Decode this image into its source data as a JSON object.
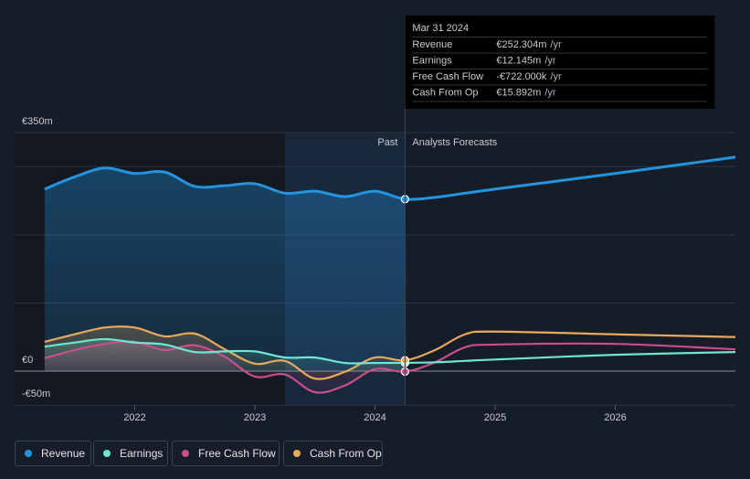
{
  "chart_data": {
    "type": "line",
    "x": [
      2021.25,
      2021.5,
      2021.75,
      2022.0,
      2022.25,
      2022.5,
      2022.75,
      2023.0,
      2023.25,
      2023.5,
      2023.75,
      2024.0,
      2024.25,
      2024.5,
      2024.75,
      2025.0,
      2026.0,
      2027.0
    ],
    "series": [
      {
        "name": "Revenue",
        "color": "#2394df",
        "values": [
          267,
          285,
          298,
          290,
          292,
          271,
          272,
          275,
          261,
          264,
          256,
          264,
          252.304,
          255,
          261,
          267,
          290,
          314
        ]
      },
      {
        "name": "Earnings",
        "color": "#6ee7d2",
        "values": [
          36,
          42,
          47,
          42,
          39,
          28,
          29,
          29,
          20,
          20,
          12,
          12,
          12.145,
          13,
          15,
          17,
          24,
          28
        ]
      },
      {
        "name": "Free Cash Flow",
        "color": "#c84f8a",
        "values": [
          19,
          31,
          40,
          43,
          31,
          38,
          21,
          -8,
          -5,
          -31,
          -21,
          3,
          -0.722,
          13,
          35,
          39,
          40,
          32
        ]
      },
      {
        "name": "Cash From Op",
        "color": "#e8a95a",
        "values": [
          43,
          54,
          64,
          64,
          51,
          55,
          32,
          11,
          15,
          -11,
          -1,
          20,
          15.892,
          31,
          54,
          58,
          54,
          50
        ]
      }
    ],
    "xlim": [
      2021.0,
      2027.0
    ],
    "xticks": [
      2022,
      2023,
      2024,
      2025,
      2026
    ],
    "ylim": [
      -50,
      350
    ],
    "yticks": [
      {
        "value": 350,
        "label": "€350m"
      },
      {
        "value": 0,
        "label": "€0"
      },
      {
        "value": -50,
        "label": "-€50m"
      }
    ],
    "ygrid": [
      0,
      100,
      200,
      300,
      350
    ],
    "past_label": "Past",
    "forecast_label": "Analysts Forecasts",
    "past_end": 2024.25,
    "highlight": [
      2023.25,
      2024.25
    ],
    "tooltip": {
      "date": "Mar 31 2024",
      "rows": [
        {
          "label": "Revenue",
          "value": "€252.304m",
          "unit": "/yr"
        },
        {
          "label": "Earnings",
          "value": "€12.145m",
          "unit": "/yr"
        },
        {
          "label": "Free Cash Flow",
          "value": "-€722.000k",
          "unit": "/yr"
        },
        {
          "label": "Cash From Op",
          "value": "€15.892m",
          "unit": "/yr"
        }
      ]
    }
  }
}
